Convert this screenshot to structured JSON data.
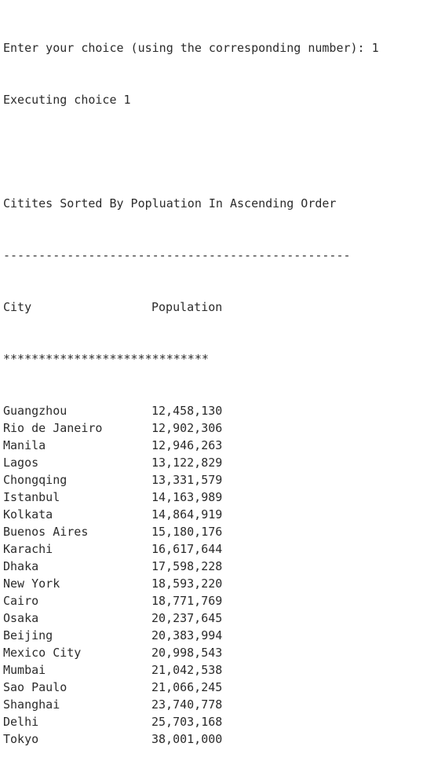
{
  "console": {
    "prompt_line": "Enter your choice (using the corresponding number): 1",
    "executing_line": "Executing choice 1",
    "report_title": "Citites Sorted By Popluation In Ascending Order",
    "dash_separator": "-------------------------------------------------",
    "header_city": "City",
    "header_population": "Population",
    "star_separator": "*****************************",
    "rows": [
      {
        "city": "Guangzhou",
        "population": "12,458,130"
      },
      {
        "city": "Rio de Janeiro",
        "population": "12,902,306"
      },
      {
        "city": "Manila",
        "population": "12,946,263"
      },
      {
        "city": "Lagos",
        "population": "13,122,829"
      },
      {
        "city": "Chongqing",
        "population": "13,331,579"
      },
      {
        "city": "Istanbul",
        "population": "14,163,989"
      },
      {
        "city": "Kolkata",
        "population": "14,864,919"
      },
      {
        "city": "Buenos Aires",
        "population": "15,180,176"
      },
      {
        "city": "Karachi",
        "population": "16,617,644"
      },
      {
        "city": "Dhaka",
        "population": "17,598,228"
      },
      {
        "city": "New York",
        "population": "18,593,220"
      },
      {
        "city": "Cairo",
        "population": "18,771,769"
      },
      {
        "city": "Osaka",
        "population": "20,237,645"
      },
      {
        "city": "Beijing",
        "population": "20,383,994"
      },
      {
        "city": "Mexico City",
        "population": "20,998,543"
      },
      {
        "city": "Mumbai",
        "population": "21,042,538"
      },
      {
        "city": "Sao Paulo",
        "population": "21,066,245"
      },
      {
        "city": "Shanghai",
        "population": "23,740,778"
      },
      {
        "city": "Delhi",
        "population": "25,703,168"
      },
      {
        "city": "Tokyo",
        "population": "38,001,000"
      }
    ]
  }
}
